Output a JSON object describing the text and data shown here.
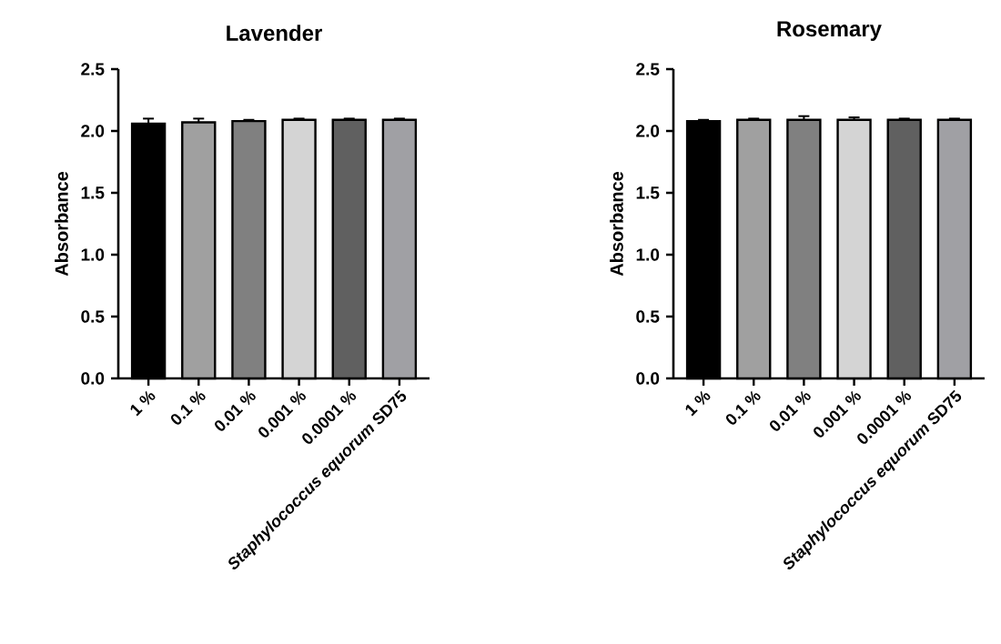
{
  "chart_data": [
    {
      "type": "bar",
      "title": "Lavender",
      "ylabel": "Absorbance",
      "categories": [
        "1 %",
        "0.1 %",
        "0.01 %",
        "0.001 %",
        "0.0001 %",
        "*Staphylococcus equorum* SD75"
      ],
      "values": [
        2.06,
        2.07,
        2.08,
        2.09,
        2.09,
        2.09
      ],
      "errors": [
        0.04,
        0.03,
        0.01,
        0.01,
        0.01,
        0.01
      ],
      "colors": [
        "#000000",
        "#a0a0a0",
        "#808080",
        "#d4d4d4",
        "#606060",
        "#a0a0a4"
      ],
      "ylim": [
        0,
        2.5
      ],
      "yticks": [
        {
          "value": 0,
          "label": "0.0"
        },
        {
          "value": 0.5,
          "label": "0.5"
        },
        {
          "value": 1.0,
          "label": "1.0"
        },
        {
          "value": 1.5,
          "label": "1.5"
        },
        {
          "value": 2.0,
          "label": "2.0"
        },
        {
          "value": 2.5,
          "label": "2.5"
        }
      ]
    },
    {
      "type": "bar",
      "title": "Rosemary",
      "ylabel": "Absorbance",
      "categories": [
        "1 %",
        "0.1 %",
        "0.01 %",
        "0.001 %",
        "0.0001 %",
        "*Staphylococcus equorum* SD75"
      ],
      "values": [
        2.08,
        2.09,
        2.09,
        2.09,
        2.09,
        2.09
      ],
      "errors": [
        0.01,
        0.01,
        0.03,
        0.02,
        0.01,
        0.01
      ],
      "colors": [
        "#000000",
        "#a0a0a0",
        "#808080",
        "#d4d4d4",
        "#606060",
        "#a0a0a4"
      ],
      "ylim": [
        0,
        2.5
      ],
      "yticks": [
        {
          "value": 0,
          "label": "0.0"
        },
        {
          "value": 0.5,
          "label": "0.5"
        },
        {
          "value": 1.0,
          "label": "1.0"
        },
        {
          "value": 1.5,
          "label": "1.5"
        },
        {
          "value": 2.0,
          "label": "2.0"
        },
        {
          "value": 2.5,
          "label": "2.5"
        }
      ]
    }
  ]
}
